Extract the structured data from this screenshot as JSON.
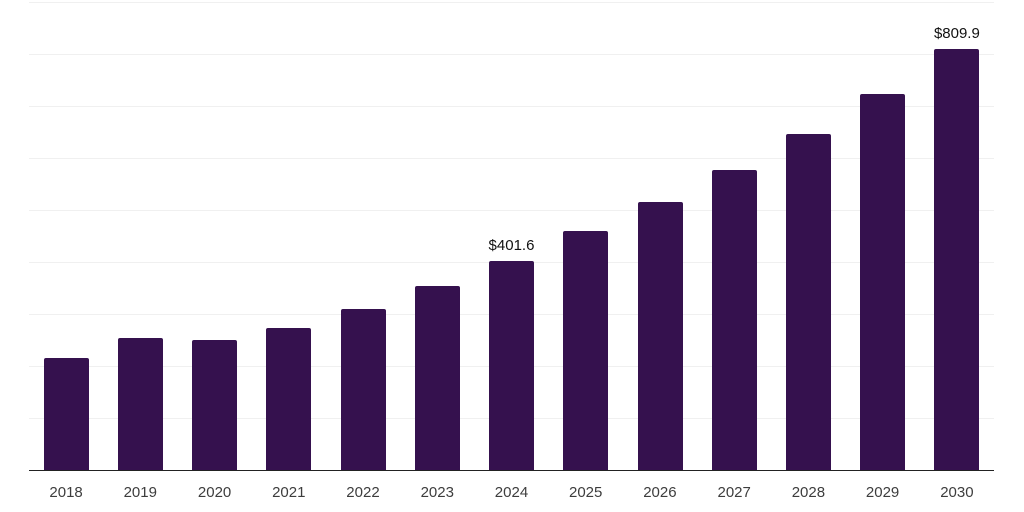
{
  "chart_data": {
    "type": "bar",
    "title": "",
    "xlabel": "",
    "ylabel": "",
    "categories": [
      "2018",
      "2019",
      "2020",
      "2021",
      "2022",
      "2023",
      "2024",
      "2025",
      "2026",
      "2027",
      "2028",
      "2029",
      "2030"
    ],
    "values": [
      215.5,
      253.9,
      250.5,
      273.0,
      309.5,
      354.0,
      401.6,
      459.9,
      516.0,
      577.0,
      645.5,
      724.0,
      809.9
    ],
    "value_labels": [
      {
        "category": "2024",
        "text": "$401.6"
      },
      {
        "category": "2030",
        "text": "$809.9"
      }
    ],
    "ylim": [
      0,
      900
    ],
    "ytick_interval": 100,
    "ytick_labels_visible": false,
    "grid": "horizontal",
    "legend": "none",
    "colors": {
      "bar": "#35114E",
      "grid": "#f0f0f0",
      "axis": "#222222",
      "xtick_label": "#3d3d3d",
      "value_label": "#111111",
      "background": "#ffffff"
    }
  }
}
